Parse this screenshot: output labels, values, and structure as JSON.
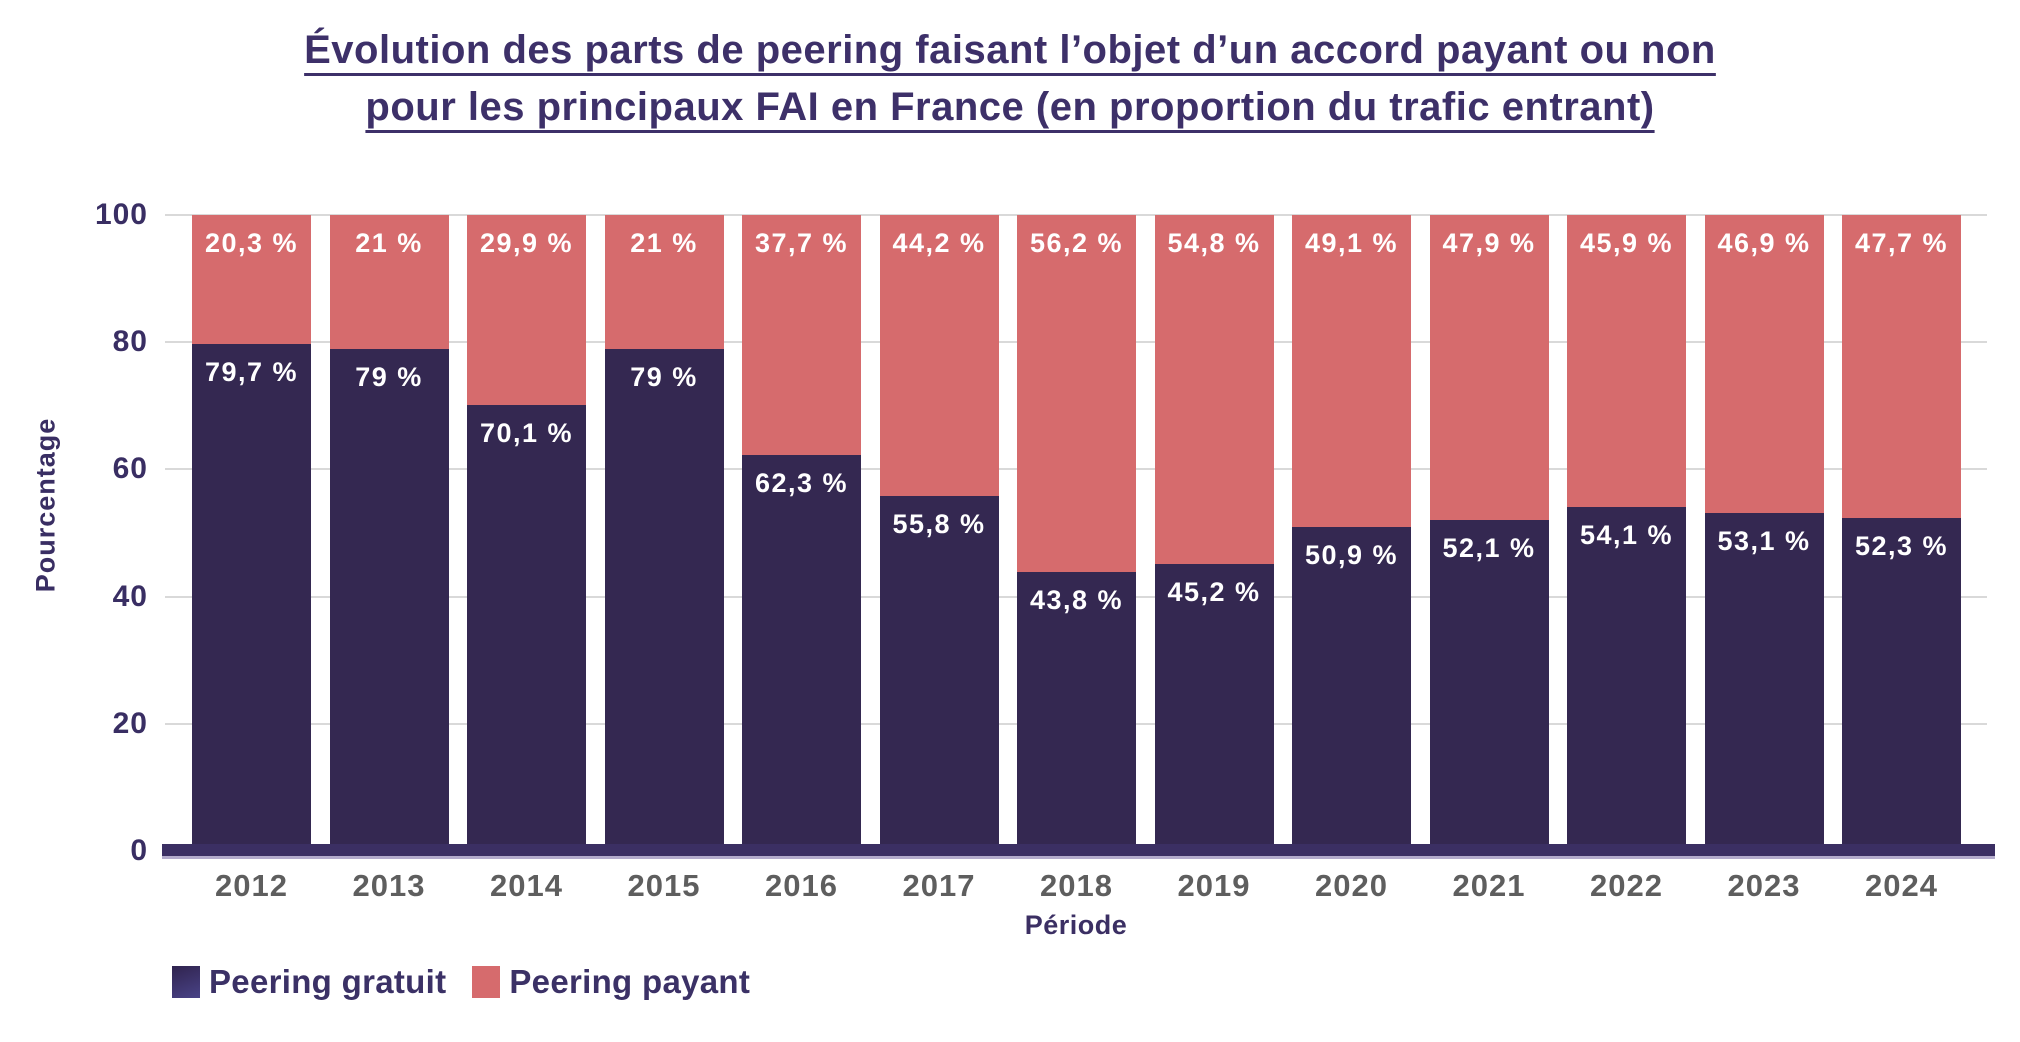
{
  "title": {
    "line1": "Évolution des parts de peering faisant l’objet d’un accord payant ou non",
    "line2": "pour les principaux FAI en France (en proportion du trafic entrant)"
  },
  "chart_data": {
    "type": "bar",
    "stacked": true,
    "title": "Évolution des parts de peering faisant l’objet d’un accord payant ou non pour les principaux FAI en France (en proportion du trafic entrant)",
    "xlabel": "Période",
    "ylabel": "Pourcentage",
    "ylim": [
      0,
      100
    ],
    "yticks": [
      0,
      20,
      40,
      60,
      80,
      100
    ],
    "grid": true,
    "legend_position": "bottom-left",
    "categories": [
      "2012",
      "2013",
      "2014",
      "2015",
      "2016",
      "2017",
      "2018",
      "2019",
      "2020",
      "2021",
      "2022",
      "2023",
      "2024"
    ],
    "series": [
      {
        "name": "Peering gratuit",
        "color": "#342851",
        "values": [
          79.7,
          79,
          70.1,
          79,
          62.3,
          55.8,
          43.8,
          45.2,
          50.9,
          52.1,
          54.1,
          53.1,
          52.3
        ],
        "labels": [
          "79,7 %",
          "79 %",
          "70,1 %",
          "79 %",
          "62,3 %",
          "55,8 %",
          "43,8 %",
          "45,2 %",
          "50,9 %",
          "52,1 %",
          "54,1 %",
          "53,1 %",
          "52,3 %"
        ]
      },
      {
        "name": "Peering payant",
        "color": "#d66b6d",
        "values": [
          20.3,
          21,
          29.9,
          21,
          37.7,
          44.2,
          56.2,
          54.8,
          49.1,
          47.9,
          45.9,
          46.9,
          47.7
        ],
        "labels": [
          "20,3 %",
          "21 %",
          "29,9 %",
          "21 %",
          "37,7 %",
          "44,2 %",
          "56,2 %",
          "54,8 %",
          "49,1 %",
          "47,9 %",
          "45,9 %",
          "46,9 %",
          "47,7 %"
        ]
      }
    ]
  },
  "colors": {
    "title_text": "#3d3069",
    "axis_text": "#392e63",
    "year_text": "#5e5e5e",
    "gridline": "#d9d9d9",
    "baseline": "#3b2f63",
    "baseline_shadow": "#b3abcc",
    "segment_label_text": "#ffffff",
    "background": "#ffffff"
  }
}
